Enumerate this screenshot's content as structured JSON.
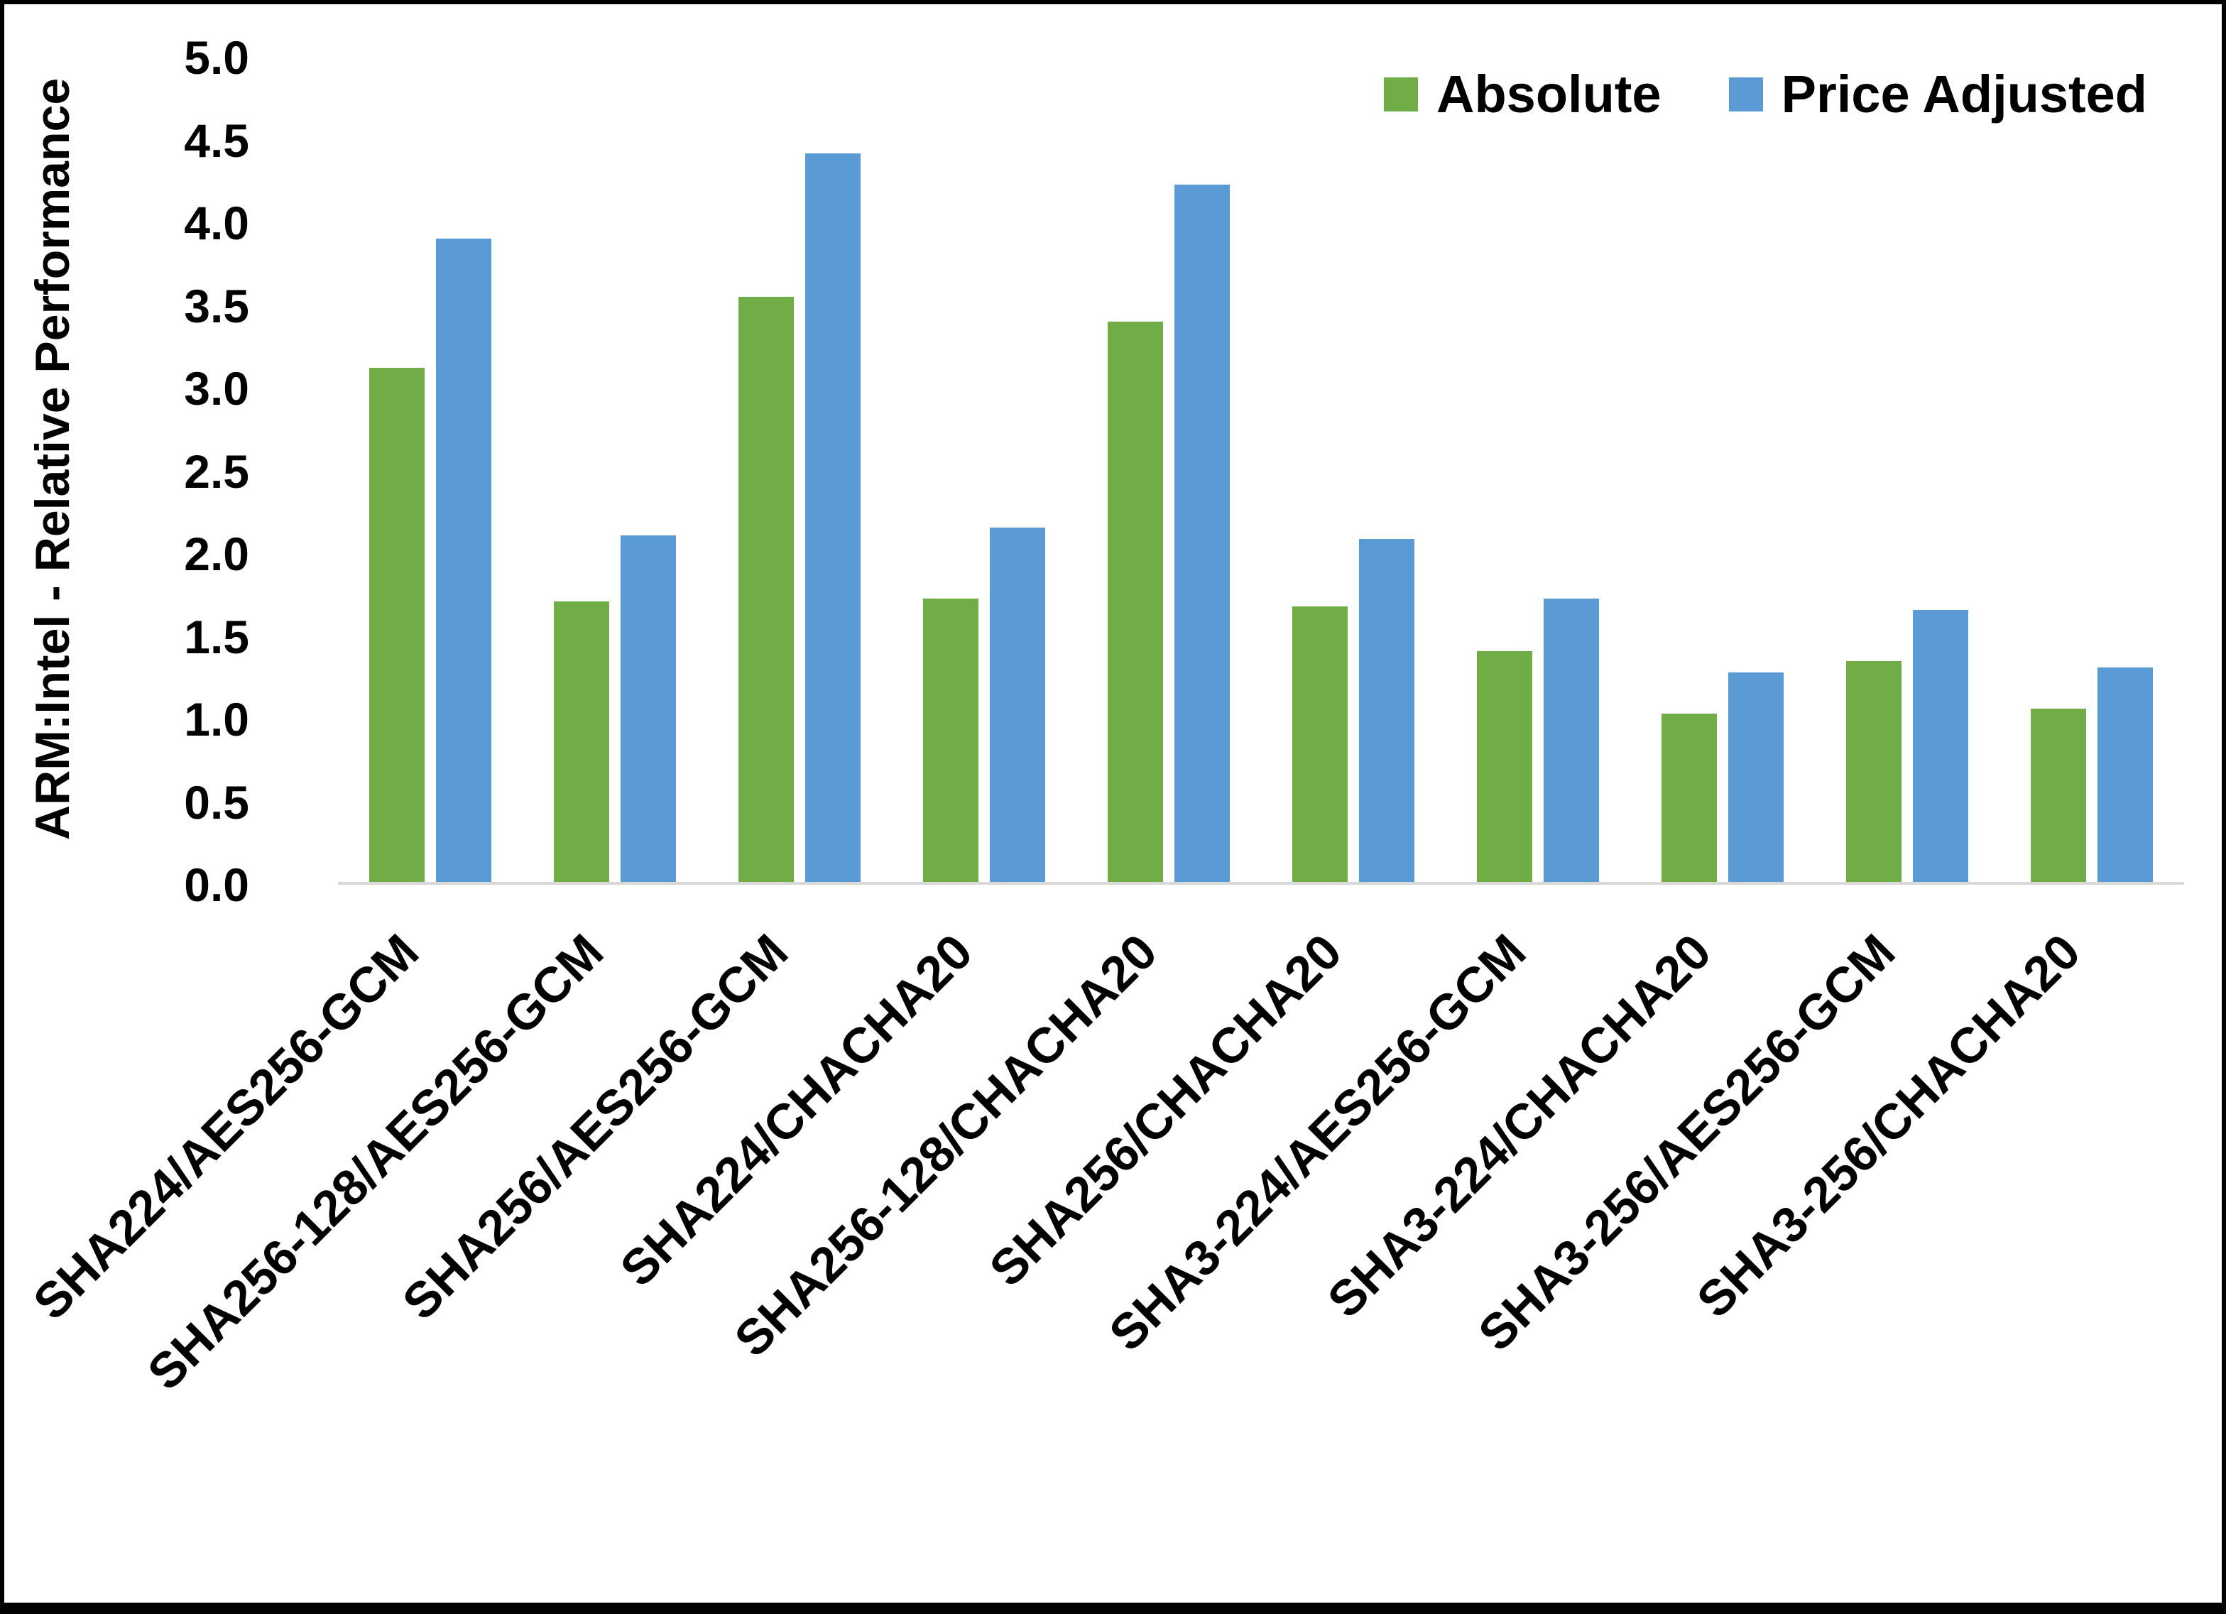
{
  "chart_data": {
    "type": "bar",
    "title": "",
    "ylabel": "ARM:Intel - Relative Performance",
    "xlabel": "",
    "ylim": [
      0,
      5
    ],
    "ytick_step": 0.5,
    "grid": false,
    "legend_position": "top-right",
    "axis_line_color": "#d9d9d9",
    "text_color": "#000000",
    "categories": [
      "SHA224/AES256-GCM",
      "SHA256-128/AES256-GCM",
      "SHA256/AES256-GCM",
      "SHA224/CHACHA20",
      "SHA256-128/CHACHA20",
      "SHA256/CHACHA20",
      "SHA3-224/AES256-GCM",
      "SHA3-224/CHACHA20",
      "SHA3-256/AES256-GCM",
      "SHA3-256/CHACHA20"
    ],
    "series": [
      {
        "name": "Absolute",
        "color": "#70AD47",
        "values": [
          3.12,
          1.7,
          3.55,
          1.72,
          3.4,
          1.67,
          1.4,
          1.02,
          1.34,
          1.05
        ]
      },
      {
        "name": "Price Adjusted",
        "color": "#5B9BD5",
        "values": [
          3.9,
          2.1,
          4.42,
          2.15,
          4.23,
          2.08,
          1.72,
          1.27,
          1.65,
          1.3
        ]
      }
    ]
  }
}
